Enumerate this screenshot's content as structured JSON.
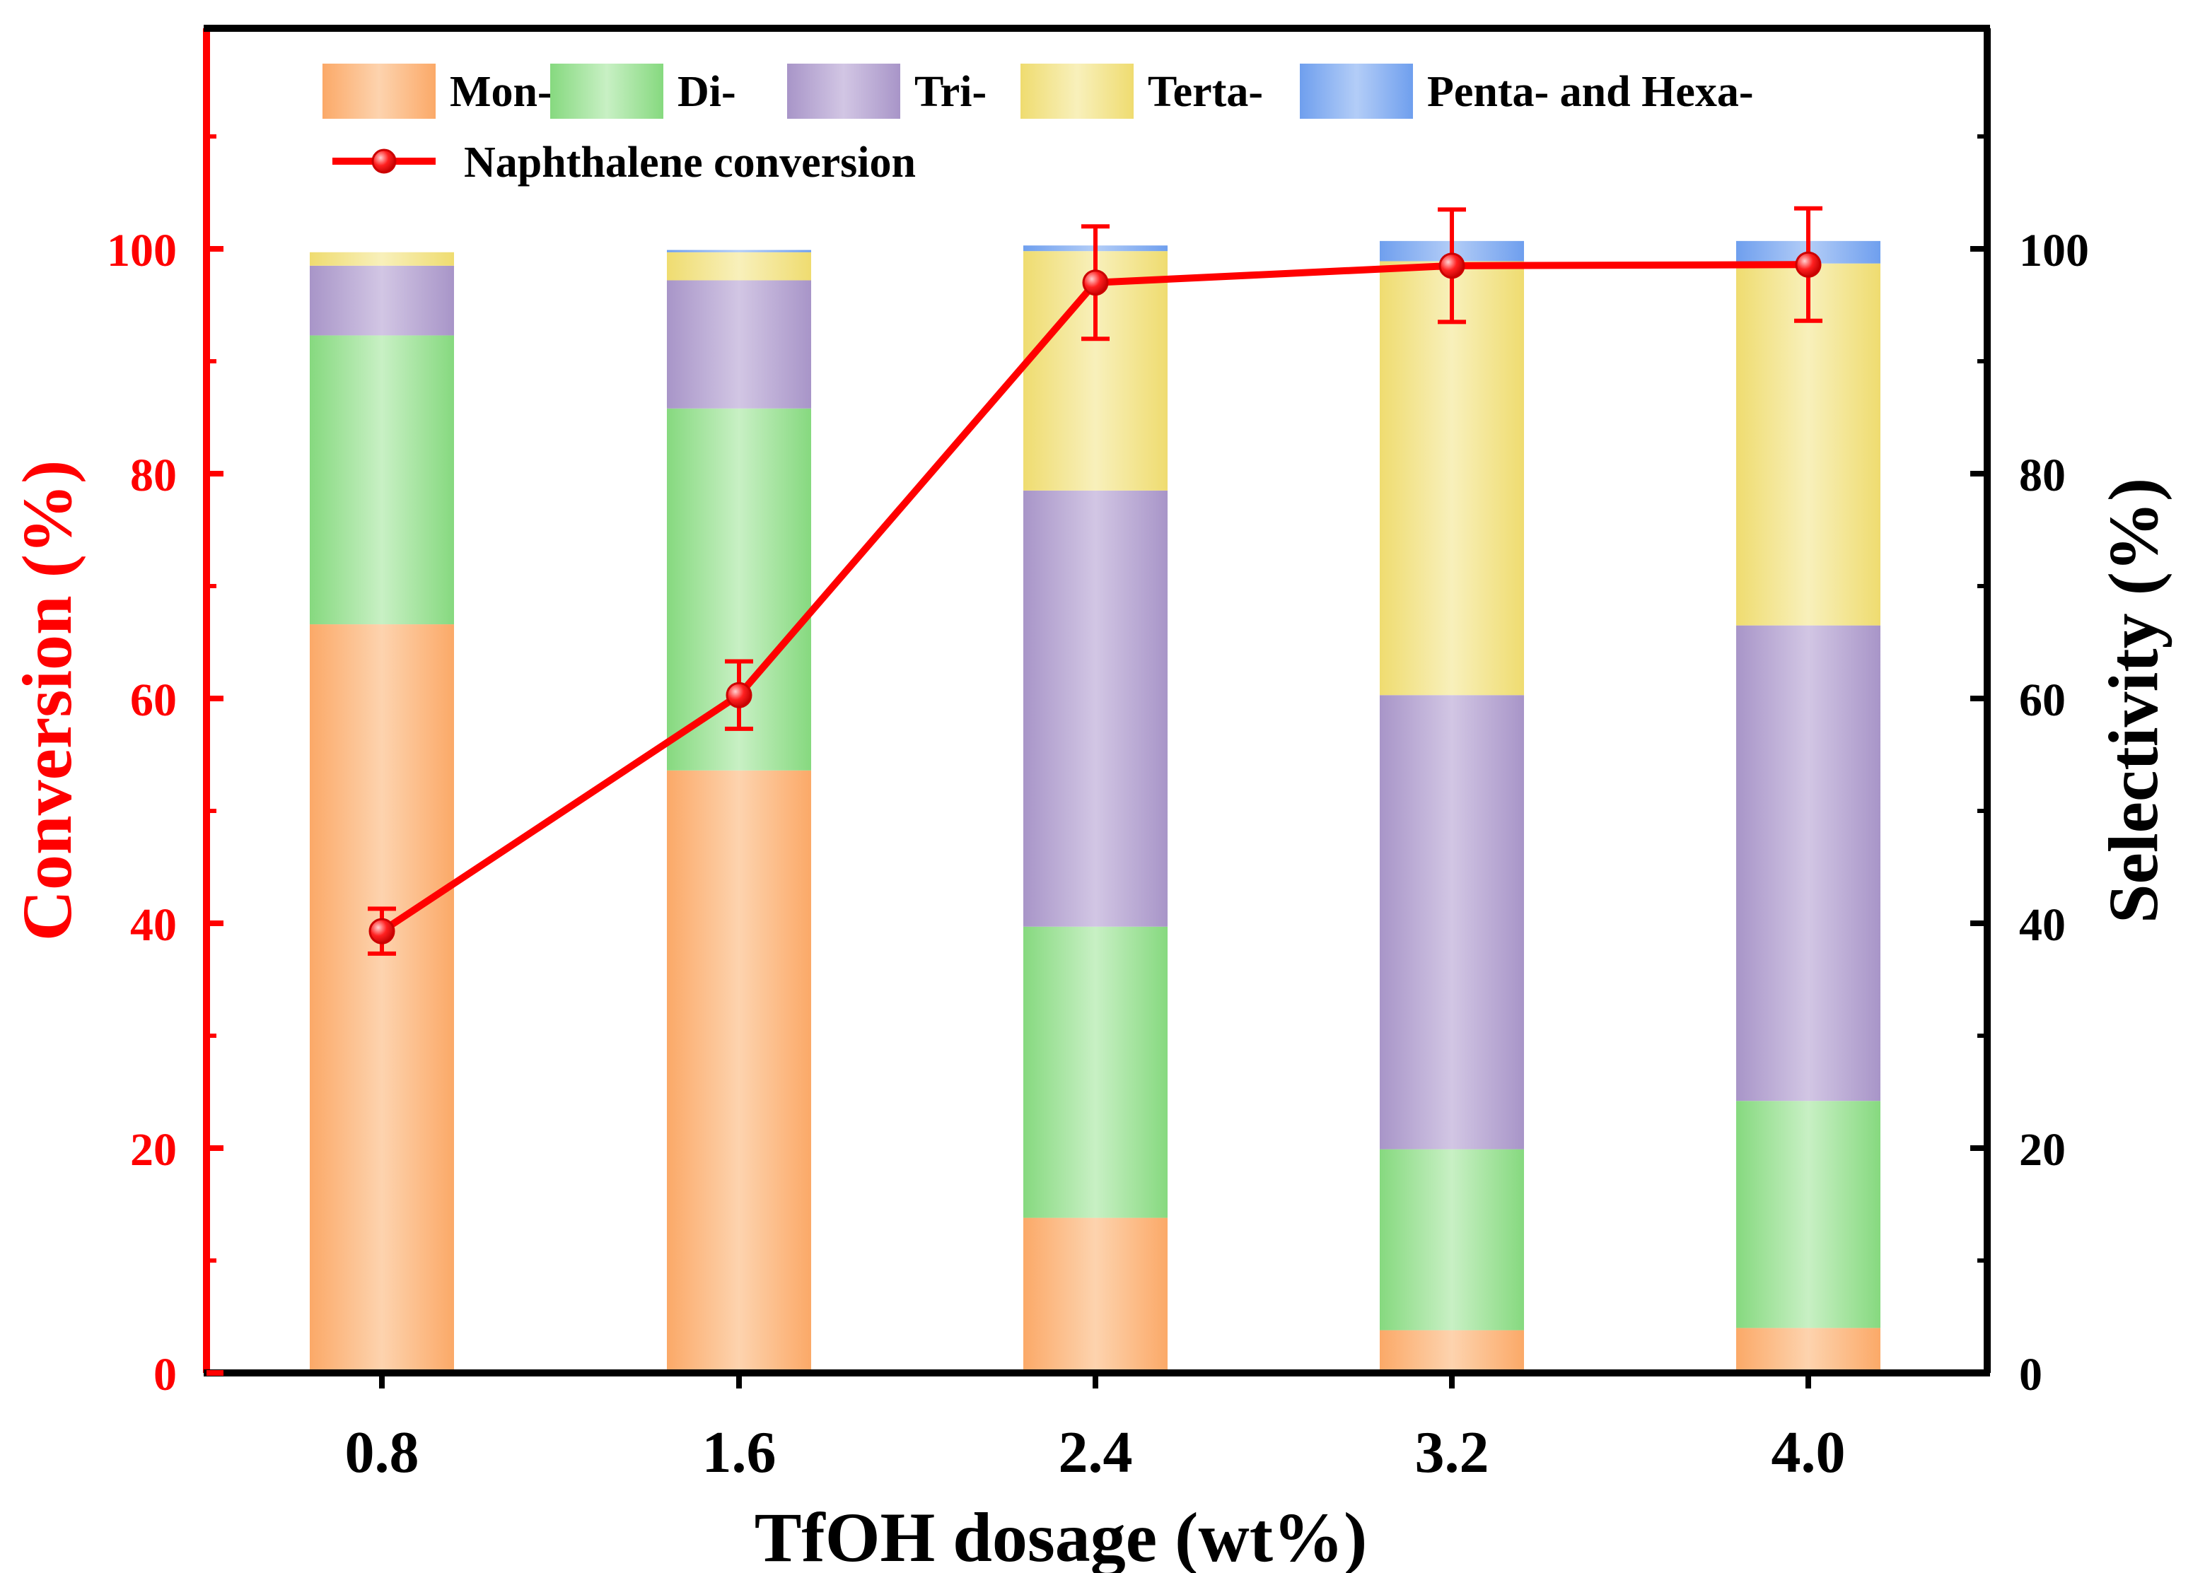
{
  "chart_data": {
    "type": "bar",
    "stacked": true,
    "categories": [
      "0.8",
      "1.6",
      "2.4",
      "3.2",
      "4.0"
    ],
    "series": [
      {
        "name": "Mon-",
        "values": [
          66.6,
          53.6,
          13.8,
          3.8,
          4.0
        ],
        "color": "#fbb377"
      },
      {
        "name": "Di-",
        "values": [
          25.7,
          32.2,
          25.9,
          16.1,
          20.2
        ],
        "color": "#8fdd89"
      },
      {
        "name": "Tri-",
        "values": [
          6.2,
          11.4,
          38.8,
          40.4,
          42.3
        ],
        "color": "#b09ccd"
      },
      {
        "name": "Terta-",
        "values": [
          1.2,
          2.5,
          21.3,
          38.6,
          32.2
        ],
        "color": "#f0e07a"
      },
      {
        "name": "Penta- and Hexa-",
        "values": [
          0.0,
          0.2,
          0.5,
          1.8,
          2.0
        ],
        "color": "#7faaf0"
      }
    ],
    "line_series": {
      "name": "Naphthalene conversion",
      "values": [
        39.3,
        60.3,
        97.0,
        98.5,
        98.6
      ],
      "errors": [
        2.0,
        3.0,
        5.0,
        5.0,
        5.0
      ],
      "color": "#ff0000"
    },
    "xlabel": "TfOH dosage (wt%)",
    "ylabel_left": "Conversion (%)",
    "ylabel_right": "Selectivity (%)",
    "ylim": [
      0,
      118
    ],
    "yticks": [
      0,
      20,
      40,
      60,
      80,
      100
    ],
    "legend_position": "top",
    "colors": {
      "left_axis": "#ff0000",
      "right_axis": "#000000"
    }
  }
}
